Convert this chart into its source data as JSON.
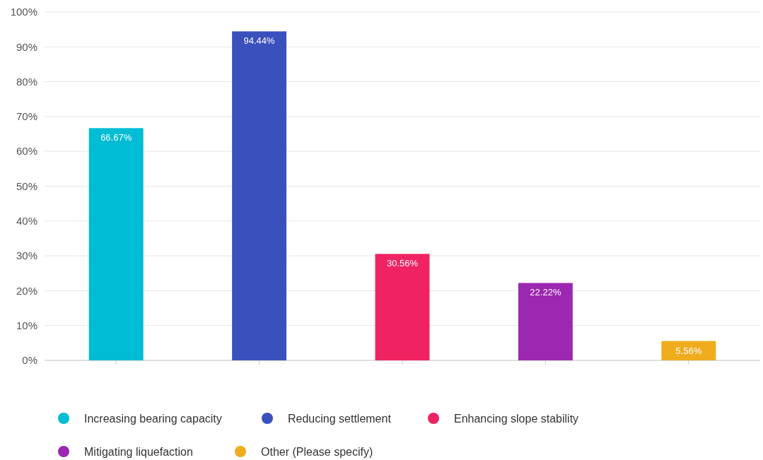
{
  "chart_data": {
    "type": "bar",
    "categories": [
      null,
      null,
      null,
      null,
      null
    ],
    "series": [
      {
        "name": "Increasing bearing capacity",
        "color": "#00bcd4",
        "values": [
          66.67,
          null,
          null,
          null,
          null
        ],
        "value_labels": [
          "66.67%",
          null,
          null,
          null,
          null
        ]
      },
      {
        "name": "Reducing settlement",
        "color": "#3a50bd",
        "values": [
          null,
          94.44,
          null,
          null,
          null
        ],
        "value_labels": [
          null,
          "94.44%",
          null,
          null,
          null
        ]
      },
      {
        "name": "Enhancing slope stability",
        "color": "#ef2361",
        "values": [
          null,
          null,
          30.56,
          null,
          null
        ],
        "value_labels": [
          null,
          null,
          "30.56%",
          null,
          null
        ]
      },
      {
        "name": "Mitigating liquefaction",
        "color": "#9c27b0",
        "values": [
          null,
          null,
          null,
          22.22,
          null
        ],
        "value_labels": [
          null,
          null,
          null,
          "22.22%",
          null
        ]
      },
      {
        "name": "Other (Please specify)",
        "color": "#efac1d",
        "values": [
          null,
          null,
          null,
          null,
          5.56
        ],
        "value_labels": [
          null,
          null,
          null,
          null,
          "5.56%"
        ]
      }
    ],
    "ylim": [
      0,
      100
    ],
    "yticks": [
      {
        "value": 0,
        "label": "0%"
      },
      {
        "value": 10,
        "label": "10%"
      },
      {
        "value": 20,
        "label": "20%"
      },
      {
        "value": 30,
        "label": "30%"
      },
      {
        "value": 40,
        "label": "40%"
      },
      {
        "value": 50,
        "label": "50%"
      },
      {
        "value": 60,
        "label": "60%"
      },
      {
        "value": 70,
        "label": "70%"
      },
      {
        "value": 80,
        "label": "80%"
      },
      {
        "value": 90,
        "label": "90%"
      },
      {
        "value": 100,
        "label": "100%"
      }
    ],
    "grid": "y",
    "legend": "bottom",
    "tick_labels": "y"
  }
}
